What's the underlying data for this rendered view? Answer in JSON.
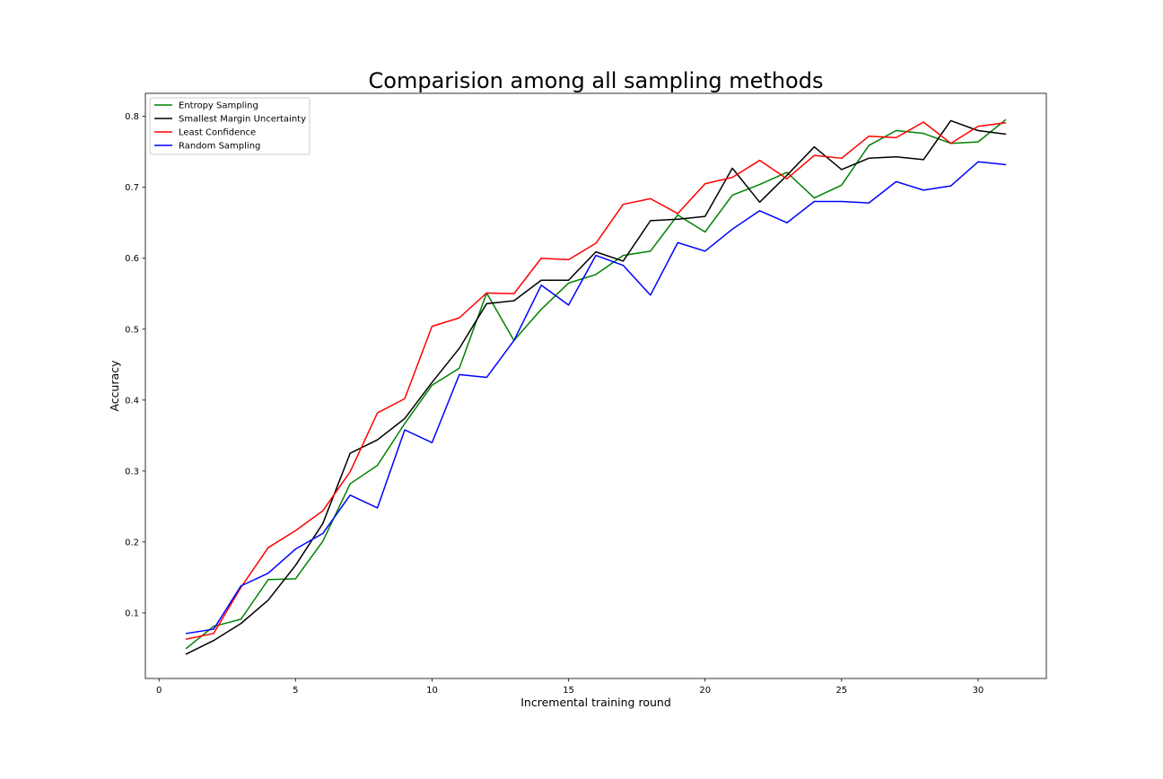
{
  "chart_data": {
    "type": "line",
    "title": "Comparision among all sampling methods",
    "xlabel": "Incremental training round",
    "ylabel": "Accuracy",
    "xlim": [
      -0.5,
      32.5
    ],
    "ylim": [
      0.0075,
      0.8325
    ],
    "x_ticks": [
      0,
      5,
      10,
      15,
      20,
      25,
      30
    ],
    "x_tick_labels": [
      "0",
      "5",
      "10",
      "15",
      "20",
      "25",
      "30"
    ],
    "y_ticks": [
      0.1,
      0.2,
      0.3,
      0.4,
      0.5,
      0.6,
      0.7,
      0.8
    ],
    "y_tick_labels": [
      "0.1",
      "0.2",
      "0.3",
      "0.4",
      "0.5",
      "0.6",
      "0.7",
      "0.8"
    ],
    "grid": false,
    "legend_position": "top-left",
    "x": [
      1,
      2,
      3,
      4,
      5,
      6,
      7,
      8,
      9,
      10,
      11,
      12,
      13,
      14,
      15,
      16,
      17,
      18,
      19,
      20,
      21,
      22,
      23,
      24,
      25,
      26,
      27,
      28,
      29,
      30,
      31
    ],
    "series": [
      {
        "name": "Entropy Sampling",
        "color": "#008000",
        "values": [
          0.05,
          0.081,
          0.091,
          0.147,
          0.148,
          0.201,
          0.282,
          0.308,
          0.367,
          0.421,
          0.445,
          0.551,
          0.484,
          0.528,
          0.565,
          0.577,
          0.604,
          0.61,
          0.661,
          0.637,
          0.689,
          0.704,
          0.721,
          0.685,
          0.703,
          0.759,
          0.78,
          0.776,
          0.762,
          0.764,
          0.795
        ]
      },
      {
        "name": "Smallest Margin Uncertainty",
        "color": "#000000",
        "values": [
          0.042,
          0.061,
          0.085,
          0.118,
          0.167,
          0.226,
          0.325,
          0.344,
          0.374,
          0.425,
          0.473,
          0.536,
          0.54,
          0.569,
          0.569,
          0.609,
          0.596,
          0.653,
          0.655,
          0.659,
          0.727,
          0.679,
          0.717,
          0.757,
          0.725,
          0.741,
          0.743,
          0.739,
          0.794,
          0.78,
          0.775
        ]
      },
      {
        "name": "Least Confidence",
        "color": "#ff0000",
        "values": [
          0.063,
          0.071,
          0.136,
          0.192,
          0.216,
          0.244,
          0.299,
          0.382,
          0.402,
          0.504,
          0.516,
          0.551,
          0.55,
          0.6,
          0.598,
          0.621,
          0.676,
          0.684,
          0.663,
          0.705,
          0.714,
          0.738,
          0.712,
          0.745,
          0.741,
          0.772,
          0.77,
          0.792,
          0.762,
          0.786,
          0.791
        ]
      },
      {
        "name": "Random Sampling",
        "color": "#0000ff",
        "values": [
          0.071,
          0.077,
          0.138,
          0.156,
          0.19,
          0.212,
          0.266,
          0.248,
          0.358,
          0.34,
          0.436,
          0.432,
          0.484,
          0.562,
          0.534,
          0.604,
          0.59,
          0.548,
          0.622,
          0.61,
          0.641,
          0.667,
          0.65,
          0.68,
          0.68,
          0.678,
          0.708,
          0.696,
          0.702,
          0.736,
          0.732
        ]
      }
    ]
  }
}
